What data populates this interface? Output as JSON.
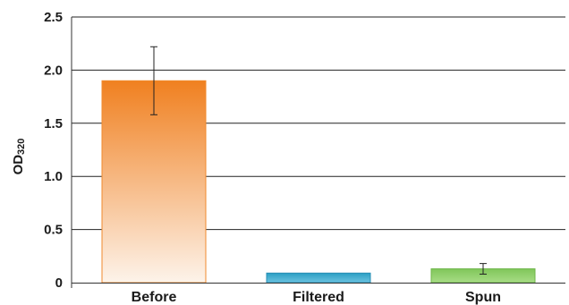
{
  "chart_data": {
    "type": "bar",
    "title": "",
    "xlabel": "",
    "ylabel": "OD",
    "ylabel_subscript": "320",
    "categories": [
      "Before",
      "Filtered",
      "Spun"
    ],
    "values": [
      1.9,
      0.09,
      0.13
    ],
    "error": [
      0.32,
      0.0,
      0.05
    ],
    "ylim": [
      0,
      2.5
    ],
    "yticks": [
      {
        "value": 0,
        "label": "0"
      },
      {
        "value": 0.5,
        "label": "0.5"
      },
      {
        "value": 1.0,
        "label": "1.0"
      },
      {
        "value": 1.5,
        "label": "1.5"
      },
      {
        "value": 2.0,
        "label": "2.0"
      },
      {
        "value": 2.5,
        "label": "2.5"
      }
    ],
    "grid": true,
    "colors": {
      "Before": {
        "top": "#f08020",
        "bottom": "#fdf3ea",
        "edge": "#f08a2e"
      },
      "Filtered": {
        "top": "#2a9fc4",
        "bottom": "#6cc3e0",
        "edge": "#2a8fb4"
      },
      "Spun": {
        "top": "#80c65a",
        "bottom": "#a8dc86",
        "edge": "#6fb64a"
      }
    }
  }
}
